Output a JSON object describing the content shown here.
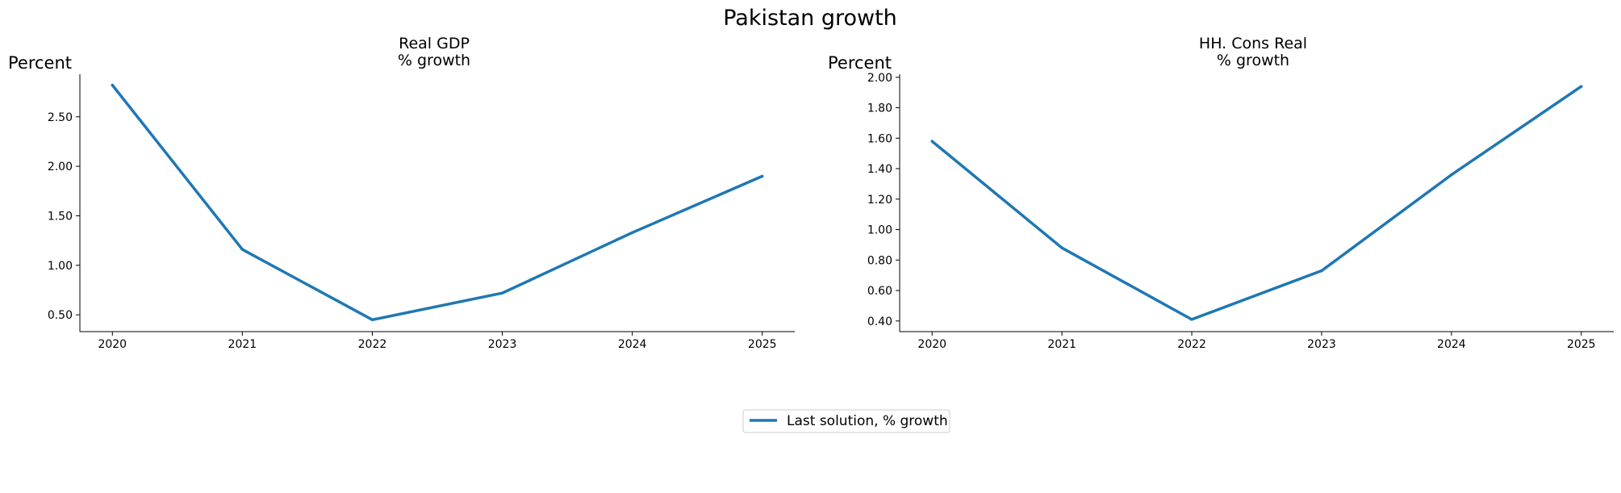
{
  "title": "Pakistan growth",
  "legend": {
    "label": "Last solution, % growth",
    "color": "#1f77b4",
    "position": "bottom-center"
  },
  "chart_data": [
    {
      "type": "line",
      "title": "Real GDP\n% growth",
      "ylabel": "Percent",
      "xlabel": "",
      "x": [
        2020,
        2021,
        2022,
        2023,
        2024,
        2025
      ],
      "series": [
        {
          "name": "Last solution, % growth",
          "color": "#1f77b4",
          "values": [
            2.82,
            1.16,
            0.45,
            0.72,
            1.33,
            1.9
          ]
        }
      ],
      "yticks": [
        "0.50",
        "1.00",
        "1.50",
        "2.00",
        "2.50"
      ],
      "ylim": [
        0.33,
        2.93
      ],
      "xlim": [
        2019.75,
        2025.25
      ],
      "grid": false
    },
    {
      "type": "line",
      "title": "HH. Cons Real\n% growth",
      "ylabel": "Percent",
      "xlabel": "",
      "x": [
        2020,
        2021,
        2022,
        2023,
        2024,
        2025
      ],
      "series": [
        {
          "name": "Last solution, % growth",
          "color": "#1f77b4",
          "values": [
            1.58,
            0.88,
            0.41,
            0.73,
            1.36,
            1.94
          ]
        }
      ],
      "yticks": [
        "0.40",
        "0.60",
        "0.80",
        "1.00",
        "1.20",
        "1.40",
        "1.60",
        "1.80",
        "2.00"
      ],
      "ylim": [
        0.33,
        2.02
      ],
      "xlim": [
        2019.75,
        2025.25
      ],
      "grid": false
    }
  ]
}
